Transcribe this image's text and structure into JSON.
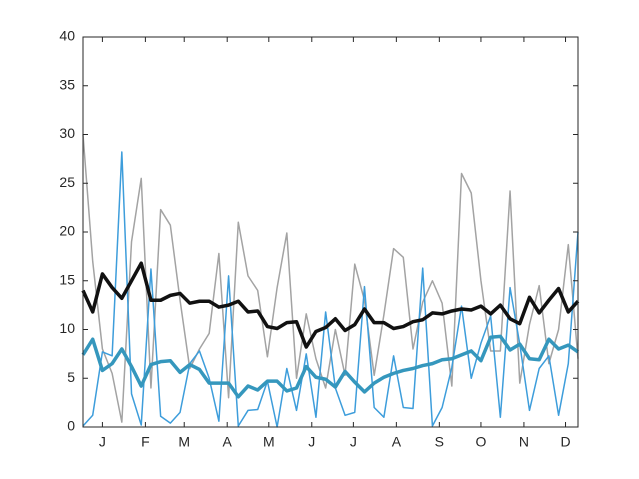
{
  "chart_data": {
    "type": "line",
    "x": [
      1,
      8,
      15,
      22,
      29,
      36,
      43,
      50,
      57,
      64,
      71,
      78,
      85,
      92,
      99,
      106,
      113,
      120,
      127,
      134,
      141,
      148,
      155,
      162,
      169,
      176,
      183,
      190,
      197,
      204,
      211,
      218,
      225,
      232,
      239,
      246,
      253,
      260,
      267,
      274,
      281,
      288,
      295,
      302,
      309,
      316,
      323,
      330,
      337,
      344,
      351,
      358
    ],
    "xlim": [
      1,
      358
    ],
    "xticks": [
      {
        "value": 15,
        "label": "J"
      },
      {
        "value": 46,
        "label": "F"
      },
      {
        "value": 74,
        "label": "M"
      },
      {
        "value": 105,
        "label": "A"
      },
      {
        "value": 135,
        "label": "M"
      },
      {
        "value": 166,
        "label": "J"
      },
      {
        "value": 196,
        "label": "J"
      },
      {
        "value": 227,
        "label": "A"
      },
      {
        "value": 258,
        "label": "S"
      },
      {
        "value": 288,
        "label": "O"
      },
      {
        "value": 319,
        "label": "N"
      },
      {
        "value": 349,
        "label": "D"
      }
    ],
    "ylim": [
      0,
      40
    ],
    "yticks": [
      0,
      5,
      10,
      15,
      20,
      25,
      30,
      35,
      40
    ],
    "grid": false,
    "series": [
      {
        "color": "#a3a3a3",
        "width": 1.5,
        "values": [
          30,
          17,
          8,
          5.5,
          0.5,
          19,
          25.5,
          4,
          22.3,
          20.7,
          13,
          6,
          8,
          9.6,
          17.8,
          3,
          21,
          15.5,
          14,
          7.2,
          14.3,
          19.9,
          5,
          11.6,
          7,
          4,
          10,
          5.3,
          16.7,
          13,
          5.3,
          11.5,
          18.3,
          17.4,
          8,
          12.8,
          15,
          12.7,
          4.2,
          26,
          24,
          15,
          7.8,
          7.8,
          24.2,
          4.5,
          10.5,
          14.5,
          6.5,
          10,
          18.7,
          7
        ]
      },
      {
        "color": "#3d9ddb",
        "width": 1.5,
        "values": [
          0.1,
          1.2,
          7.7,
          7.3,
          28.2,
          3.4,
          0.2,
          16.2,
          1.1,
          0.4,
          1.5,
          6.5,
          7.8,
          5,
          0.6,
          15.5,
          0.1,
          1.7,
          1.8,
          4.7,
          0,
          6,
          1.7,
          7.5,
          1,
          11.8,
          4,
          1.2,
          1.5,
          14.4,
          2,
          1,
          7.3,
          2,
          1.9,
          16.3,
          0.1,
          2,
          6.1,
          12.4,
          5,
          8.6,
          11.4,
          1,
          14.3,
          8.5,
          1.7,
          6,
          7.3,
          1.2,
          6.5,
          20
        ]
      },
      {
        "color": "#3597bd",
        "width": 3.5,
        "values": [
          7.4,
          9,
          5.8,
          6.5,
          8,
          6.2,
          4.2,
          6.4,
          6.7,
          6.8,
          5.6,
          6.4,
          5.9,
          4.5,
          4.5,
          4.5,
          3.1,
          4.2,
          3.8,
          4.7,
          4.7,
          3.7,
          4,
          6.2,
          5.1,
          4.9,
          4.1,
          5.7,
          4.6,
          3.6,
          4.5,
          5.1,
          5.5,
          5.8,
          6,
          6.3,
          6.5,
          6.9,
          7,
          7.4,
          7.8,
          6.8,
          9.2,
          9.3,
          7.9,
          8.5,
          7,
          6.9,
          9,
          8,
          8.4,
          7.7
        ]
      },
      {
        "color": "#111111",
        "width": 3.5,
        "values": [
          14,
          11.8,
          15.7,
          14.3,
          13.2,
          15,
          16.8,
          13,
          13,
          13.5,
          13.7,
          12.7,
          12.9,
          12.9,
          12.3,
          12.5,
          12.9,
          11.8,
          11.9,
          10.3,
          10.1,
          10.7,
          10.8,
          8.2,
          9.8,
          10.2,
          11.1,
          9.9,
          10.5,
          12.1,
          10.7,
          10.7,
          10.1,
          10.3,
          10.8,
          11,
          11.7,
          11.6,
          11.9,
          12.1,
          12,
          12.4,
          11.6,
          12.5,
          11.1,
          10.6,
          13.3,
          11.7,
          13,
          14.2,
          11.8,
          12.9
        ]
      }
    ]
  }
}
